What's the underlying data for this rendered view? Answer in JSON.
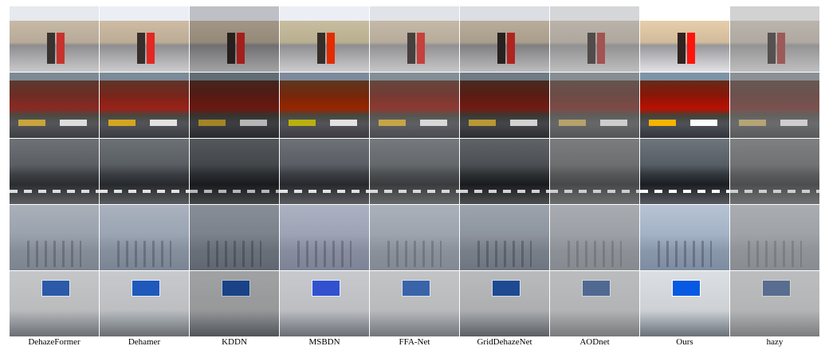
{
  "figure": {
    "methods": [
      "DehazeFormer",
      "Dehamer",
      "KDDN",
      "MSBDN",
      "FFA-Net",
      "GridDehazeNet",
      "AODnet",
      "Ours",
      "hazy"
    ]
  }
}
